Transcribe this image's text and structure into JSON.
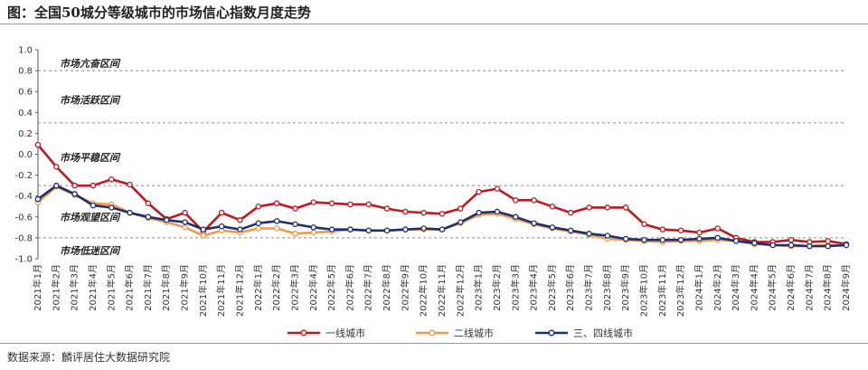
{
  "title": "图：全国50城分等级城市的市场信心指数月度走势",
  "source": "数据来源：麟评居住大数据研究院",
  "chart_data": {
    "type": "line",
    "ylim": [
      -1.0,
      1.0
    ],
    "y_ticks": [
      "1.0",
      "0.8",
      "0.6",
      "0.4",
      "0.2",
      "0.0",
      "-0.2",
      "-0.4",
      "-0.6",
      "-0.8",
      "-1.0"
    ],
    "zones": [
      {
        "label": "市场亢奋区间",
        "y": 0.87
      },
      {
        "label": "市场活跃区间",
        "y": 0.52
      },
      {
        "label": "市场平稳区间",
        "y": -0.03
      },
      {
        "label": "市场观望区间",
        "y": -0.6
      },
      {
        "label": "市场低迷区间",
        "y": -0.92
      }
    ],
    "zone_boundaries": [
      0.8,
      0.3,
      -0.3,
      -0.8
    ],
    "x": [
      "2021年1月",
      "2021年2月",
      "2021年3月",
      "2021年4月",
      "2021年5月",
      "2021年6月",
      "2021年7月",
      "2021年8月",
      "2021年9月",
      "2021年10月",
      "2021年11月",
      "2021年12月",
      "2022年1月",
      "2022年2月",
      "2022年3月",
      "2022年4月",
      "2022年5月",
      "2022年6月",
      "2022年7月",
      "2022年8月",
      "2022年9月",
      "2022年10月",
      "2022年11月",
      "2022年12月",
      "2023年1月",
      "2023年2月",
      "2023年3月",
      "2023年4月",
      "2023年5月",
      "2023年6月",
      "2023年7月",
      "2023年8月",
      "2023年9月",
      "2023年10月",
      "2023年11月",
      "2023年12月",
      "2024年1月",
      "2024年2月",
      "2024年3月",
      "2024年4月",
      "2024年5月",
      "2024年6月",
      "2024年7月",
      "2024年8月",
      "2024年9月"
    ],
    "series": [
      {
        "name": "一线城市",
        "color": "#c0171d",
        "values": [
          0.09,
          -0.12,
          -0.3,
          -0.3,
          -0.24,
          -0.29,
          -0.47,
          -0.62,
          -0.56,
          -0.74,
          -0.56,
          -0.63,
          -0.5,
          -0.47,
          -0.52,
          -0.46,
          -0.47,
          -0.48,
          -0.48,
          -0.52,
          -0.55,
          -0.56,
          -0.57,
          -0.52,
          -0.36,
          -0.33,
          -0.44,
          -0.44,
          -0.5,
          -0.56,
          -0.51,
          -0.51,
          -0.51,
          -0.67,
          -0.72,
          -0.73,
          -0.75,
          -0.71,
          -0.8,
          -0.84,
          -0.84,
          -0.82,
          -0.84,
          -0.83,
          -0.86
        ]
      },
      {
        "name": "二线城市",
        "color": "#ef9a4a",
        "values": [
          -0.46,
          -0.31,
          -0.39,
          -0.47,
          -0.48,
          -0.56,
          -0.61,
          -0.65,
          -0.7,
          -0.78,
          -0.73,
          -0.75,
          -0.71,
          -0.71,
          -0.76,
          -0.75,
          -0.74,
          -0.72,
          -0.73,
          -0.73,
          -0.72,
          -0.72,
          -0.72,
          -0.66,
          -0.58,
          -0.57,
          -0.62,
          -0.67,
          -0.71,
          -0.74,
          -0.77,
          -0.81,
          -0.82,
          -0.83,
          -0.84,
          -0.83,
          -0.83,
          -0.82,
          -0.83,
          -0.86,
          -0.87,
          -0.88,
          -0.88,
          -0.87,
          -0.87
        ]
      },
      {
        "name": "三、四线城市",
        "color": "#1d2f6f",
        "values": [
          -0.43,
          -0.3,
          -0.38,
          -0.49,
          -0.51,
          -0.56,
          -0.6,
          -0.63,
          -0.65,
          -0.72,
          -0.69,
          -0.72,
          -0.66,
          -0.64,
          -0.67,
          -0.7,
          -0.72,
          -0.72,
          -0.73,
          -0.73,
          -0.72,
          -0.71,
          -0.72,
          -0.65,
          -0.56,
          -0.55,
          -0.6,
          -0.66,
          -0.7,
          -0.73,
          -0.76,
          -0.78,
          -0.81,
          -0.82,
          -0.82,
          -0.82,
          -0.81,
          -0.8,
          -0.83,
          -0.85,
          -0.87,
          -0.87,
          -0.88,
          -0.88,
          -0.87
        ]
      }
    ]
  }
}
